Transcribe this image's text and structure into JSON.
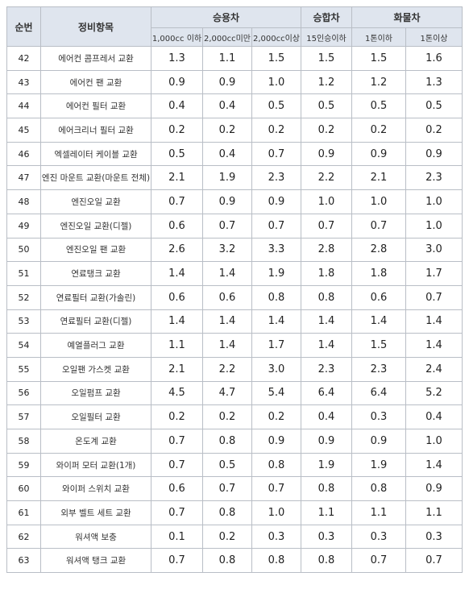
{
  "header": {
    "no": "순번",
    "item": "정비항목",
    "groups": [
      {
        "title": "승용차",
        "subs": [
          "1,000cc 이하",
          "2,000cc미만",
          "2,000cc이상"
        ]
      },
      {
        "title": "승합차",
        "subs": [
          "15인승이하"
        ]
      },
      {
        "title": "화물차",
        "subs": [
          "1톤이하",
          "1톤이상"
        ]
      }
    ]
  },
  "table": {
    "rows": [
      [
        "42",
        "에어컨 콤프레서 교환",
        "1.3",
        "1.1",
        "1.5",
        "1.5",
        "1.5",
        "1.6"
      ],
      [
        "43",
        "에어컨 팬 교환",
        "0.9",
        "0.9",
        "1.0",
        "1.2",
        "1.2",
        "1.3"
      ],
      [
        "44",
        "에어컨 필터 교환",
        "0.4",
        "0.4",
        "0.5",
        "0.5",
        "0.5",
        "0.5"
      ],
      [
        "45",
        "에어크리너 필터 교환",
        "0.2",
        "0.2",
        "0.2",
        "0.2",
        "0.2",
        "0.2"
      ],
      [
        "46",
        "엑셀레이터 케이블 교환",
        "0.5",
        "0.4",
        "0.7",
        "0.9",
        "0.9",
        "0.9"
      ],
      [
        "47",
        "엔진 마운트 교환(마운트 전체)",
        "2.1",
        "1.9",
        "2.3",
        "2.2",
        "2.1",
        "2.3"
      ],
      [
        "48",
        "엔진오일 교환",
        "0.7",
        "0.9",
        "0.9",
        "1.0",
        "1.0",
        "1.0"
      ],
      [
        "49",
        "엔진오일 교환(디젤)",
        "0.6",
        "0.7",
        "0.7",
        "0.7",
        "0.7",
        "1.0"
      ],
      [
        "50",
        "엔진오일 팬 교환",
        "2.6",
        "3.2",
        "3.3",
        "2.8",
        "2.8",
        "3.0"
      ],
      [
        "51",
        "연료탱크 교환",
        "1.4",
        "1.4",
        "1.9",
        "1.8",
        "1.8",
        "1.7"
      ],
      [
        "52",
        "연료필터 교환(가솔린)",
        "0.6",
        "0.6",
        "0.8",
        "0.8",
        "0.6",
        "0.7"
      ],
      [
        "53",
        "연료필터 교환(디젤)",
        "1.4",
        "1.4",
        "1.4",
        "1.4",
        "1.4",
        "1.4"
      ],
      [
        "54",
        "예열플러그 교환",
        "1.1",
        "1.4",
        "1.7",
        "1.4",
        "1.5",
        "1.4"
      ],
      [
        "55",
        "오일팬 가스켓 교환",
        "2.1",
        "2.2",
        "3.0",
        "2.3",
        "2.3",
        "2.4"
      ],
      [
        "56",
        "오일펌프 교환",
        "4.5",
        "4.7",
        "5.4",
        "6.4",
        "6.4",
        "5.2"
      ],
      [
        "57",
        "오일필터 교환",
        "0.2",
        "0.2",
        "0.2",
        "0.4",
        "0.3",
        "0.4"
      ],
      [
        "58",
        "온도계 교환",
        "0.7",
        "0.8",
        "0.9",
        "0.9",
        "0.9",
        "1.0"
      ],
      [
        "59",
        "와이퍼 모터 교환(1개)",
        "0.7",
        "0.5",
        "0.8",
        "1.9",
        "1.9",
        "1.4"
      ],
      [
        "60",
        "와이퍼 스위치 교환",
        "0.6",
        "0.7",
        "0.7",
        "0.8",
        "0.8",
        "0.9"
      ],
      [
        "61",
        "외부 벨트 세트 교환",
        "0.7",
        "0.8",
        "1.0",
        "1.1",
        "1.1",
        "1.1"
      ],
      [
        "62",
        "워셔액 보충",
        "0.1",
        "0.2",
        "0.3",
        "0.3",
        "0.3",
        "0.3"
      ],
      [
        "63",
        "워셔액 탱크 교환",
        "0.7",
        "0.8",
        "0.8",
        "0.8",
        "0.7",
        "0.7"
      ]
    ]
  }
}
